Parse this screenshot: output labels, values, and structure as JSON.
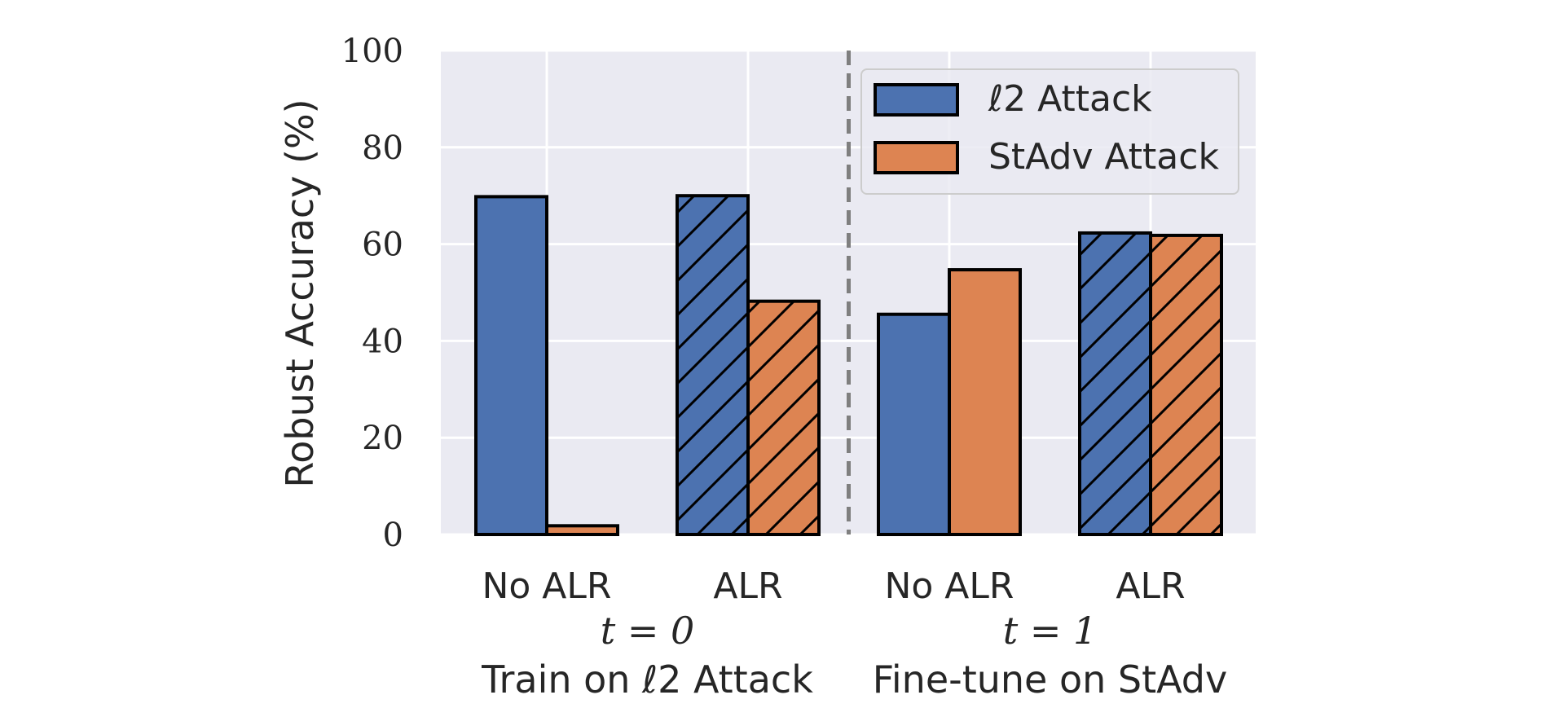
{
  "chart_data": {
    "type": "bar",
    "title": "",
    "ylabel": "Robust Accuracy (%)",
    "ylim": [
      0,
      100
    ],
    "yticks": [
      0,
      20,
      40,
      60,
      80,
      100
    ],
    "grid": true,
    "legend_placement": "top-right",
    "categories": [
      "No ALR",
      "ALR",
      "No ALR",
      "ALR"
    ],
    "groups": [
      {
        "time_label": "t = 0",
        "name": "Train on ℓ2 Attack"
      },
      {
        "time_label": "t = 1",
        "name": "Fine-tune on StAdv"
      }
    ],
    "series": [
      {
        "name": "ℓ2 Attack",
        "color": "#4c72b0",
        "values": [
          69.8,
          70.0,
          45.5,
          62.3
        ]
      },
      {
        "name": "StAdv Attack",
        "color": "#dd8452",
        "values": [
          1.8,
          48.2,
          54.7,
          61.8
        ]
      }
    ],
    "hatched_categories": [
      1,
      3
    ],
    "divider_between": [
      1,
      2
    ]
  }
}
